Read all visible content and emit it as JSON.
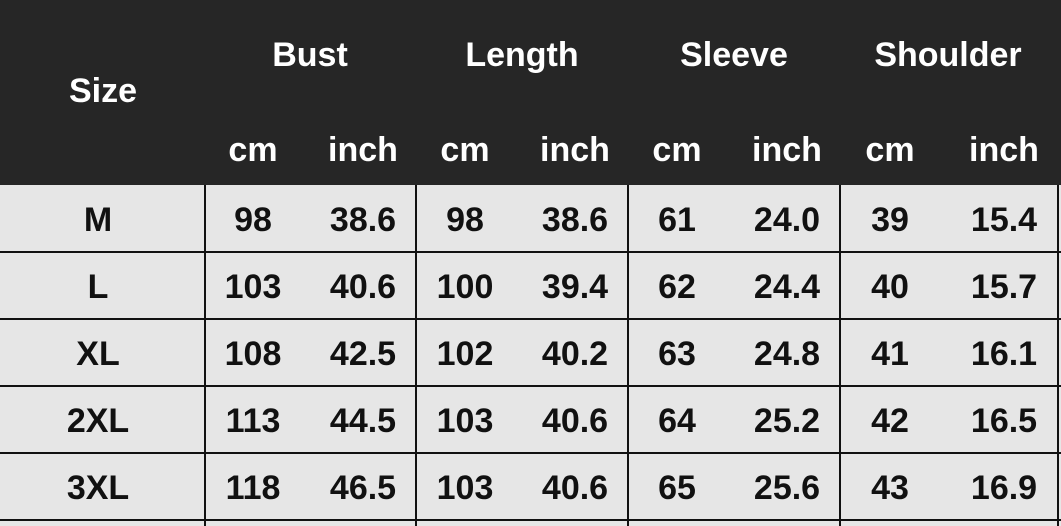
{
  "table": {
    "header": {
      "size": "Size",
      "groups": [
        "Bust",
        "Length",
        "Sleeve",
        "Shoulder"
      ],
      "units": [
        "cm",
        "inch",
        "cm",
        "inch",
        "cm",
        "inch",
        "cm",
        "inch"
      ]
    },
    "rows": [
      [
        "M",
        "98",
        "38.6",
        "98",
        "38.6",
        "61",
        "24.0",
        "39",
        "15.4"
      ],
      [
        "L",
        "103",
        "40.6",
        "100",
        "39.4",
        "62",
        "24.4",
        "40",
        "15.7"
      ],
      [
        "XL",
        "108",
        "42.5",
        "102",
        "40.2",
        "63",
        "24.8",
        "41",
        "16.1"
      ],
      [
        "2XL",
        "113",
        "44.5",
        "103",
        "40.6",
        "64",
        "25.2",
        "42",
        "16.5"
      ],
      [
        "3XL",
        "118",
        "46.5",
        "103",
        "40.6",
        "65",
        "25.6",
        "43",
        "16.9"
      ]
    ]
  }
}
